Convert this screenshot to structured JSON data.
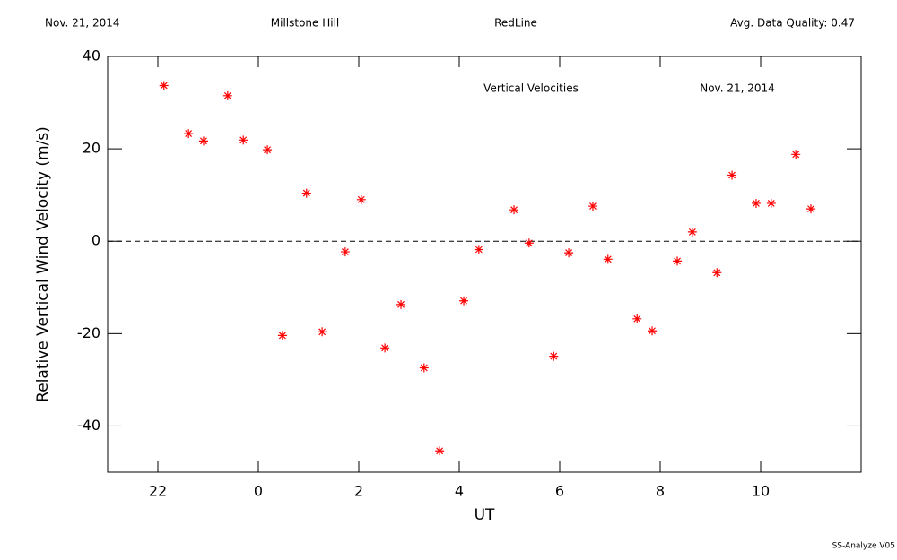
{
  "chart_data": {
    "type": "scatter",
    "header": {
      "date": "Nov. 21, 2014",
      "site": "Millstone Hill",
      "line": "RedLine",
      "quality": "Avg. Data Quality: 0.47"
    },
    "title": "Vertical Velocities",
    "annotation": "Nov. 21, 2014",
    "x_label": "UT",
    "y_label": "Relative Vertical Wind Velocity (m/s)",
    "footer": "SS-Analyze V05",
    "color": "#ff0000",
    "reference_line": 0,
    "xlim": [
      -3,
      12
    ],
    "ylim": [
      -50,
      40
    ],
    "xticks": [
      {
        "value": -2,
        "label": "22"
      },
      0,
      2,
      4,
      6,
      8,
      10
    ],
    "yticks": [
      -40,
      -20,
      0,
      20,
      40
    ],
    "x": [
      -1.88,
      -1.39,
      -1.09,
      -0.61,
      -0.3,
      0.18,
      0.48,
      0.96,
      1.27,
      1.73,
      2.05,
      2.52,
      2.84,
      3.3,
      3.61,
      4.09,
      4.39,
      5.09,
      5.39,
      5.88,
      6.18,
      6.66,
      6.96,
      7.54,
      7.84,
      8.34,
      8.64,
      9.13,
      9.43,
      9.91,
      10.21,
      10.7,
      11.0
    ],
    "values": [
      33.7,
      23.3,
      21.7,
      31.5,
      21.9,
      19.8,
      -20.4,
      10.4,
      -19.6,
      -2.3,
      9.0,
      -23.1,
      -13.7,
      -27.4,
      -45.4,
      -12.9,
      -1.8,
      6.8,
      -0.4,
      -24.9,
      -2.5,
      7.6,
      -3.9,
      -16.8,
      -19.4,
      -4.3,
      2.0,
      -6.8,
      14.3,
      8.2,
      8.2,
      18.8,
      7.0
    ]
  }
}
